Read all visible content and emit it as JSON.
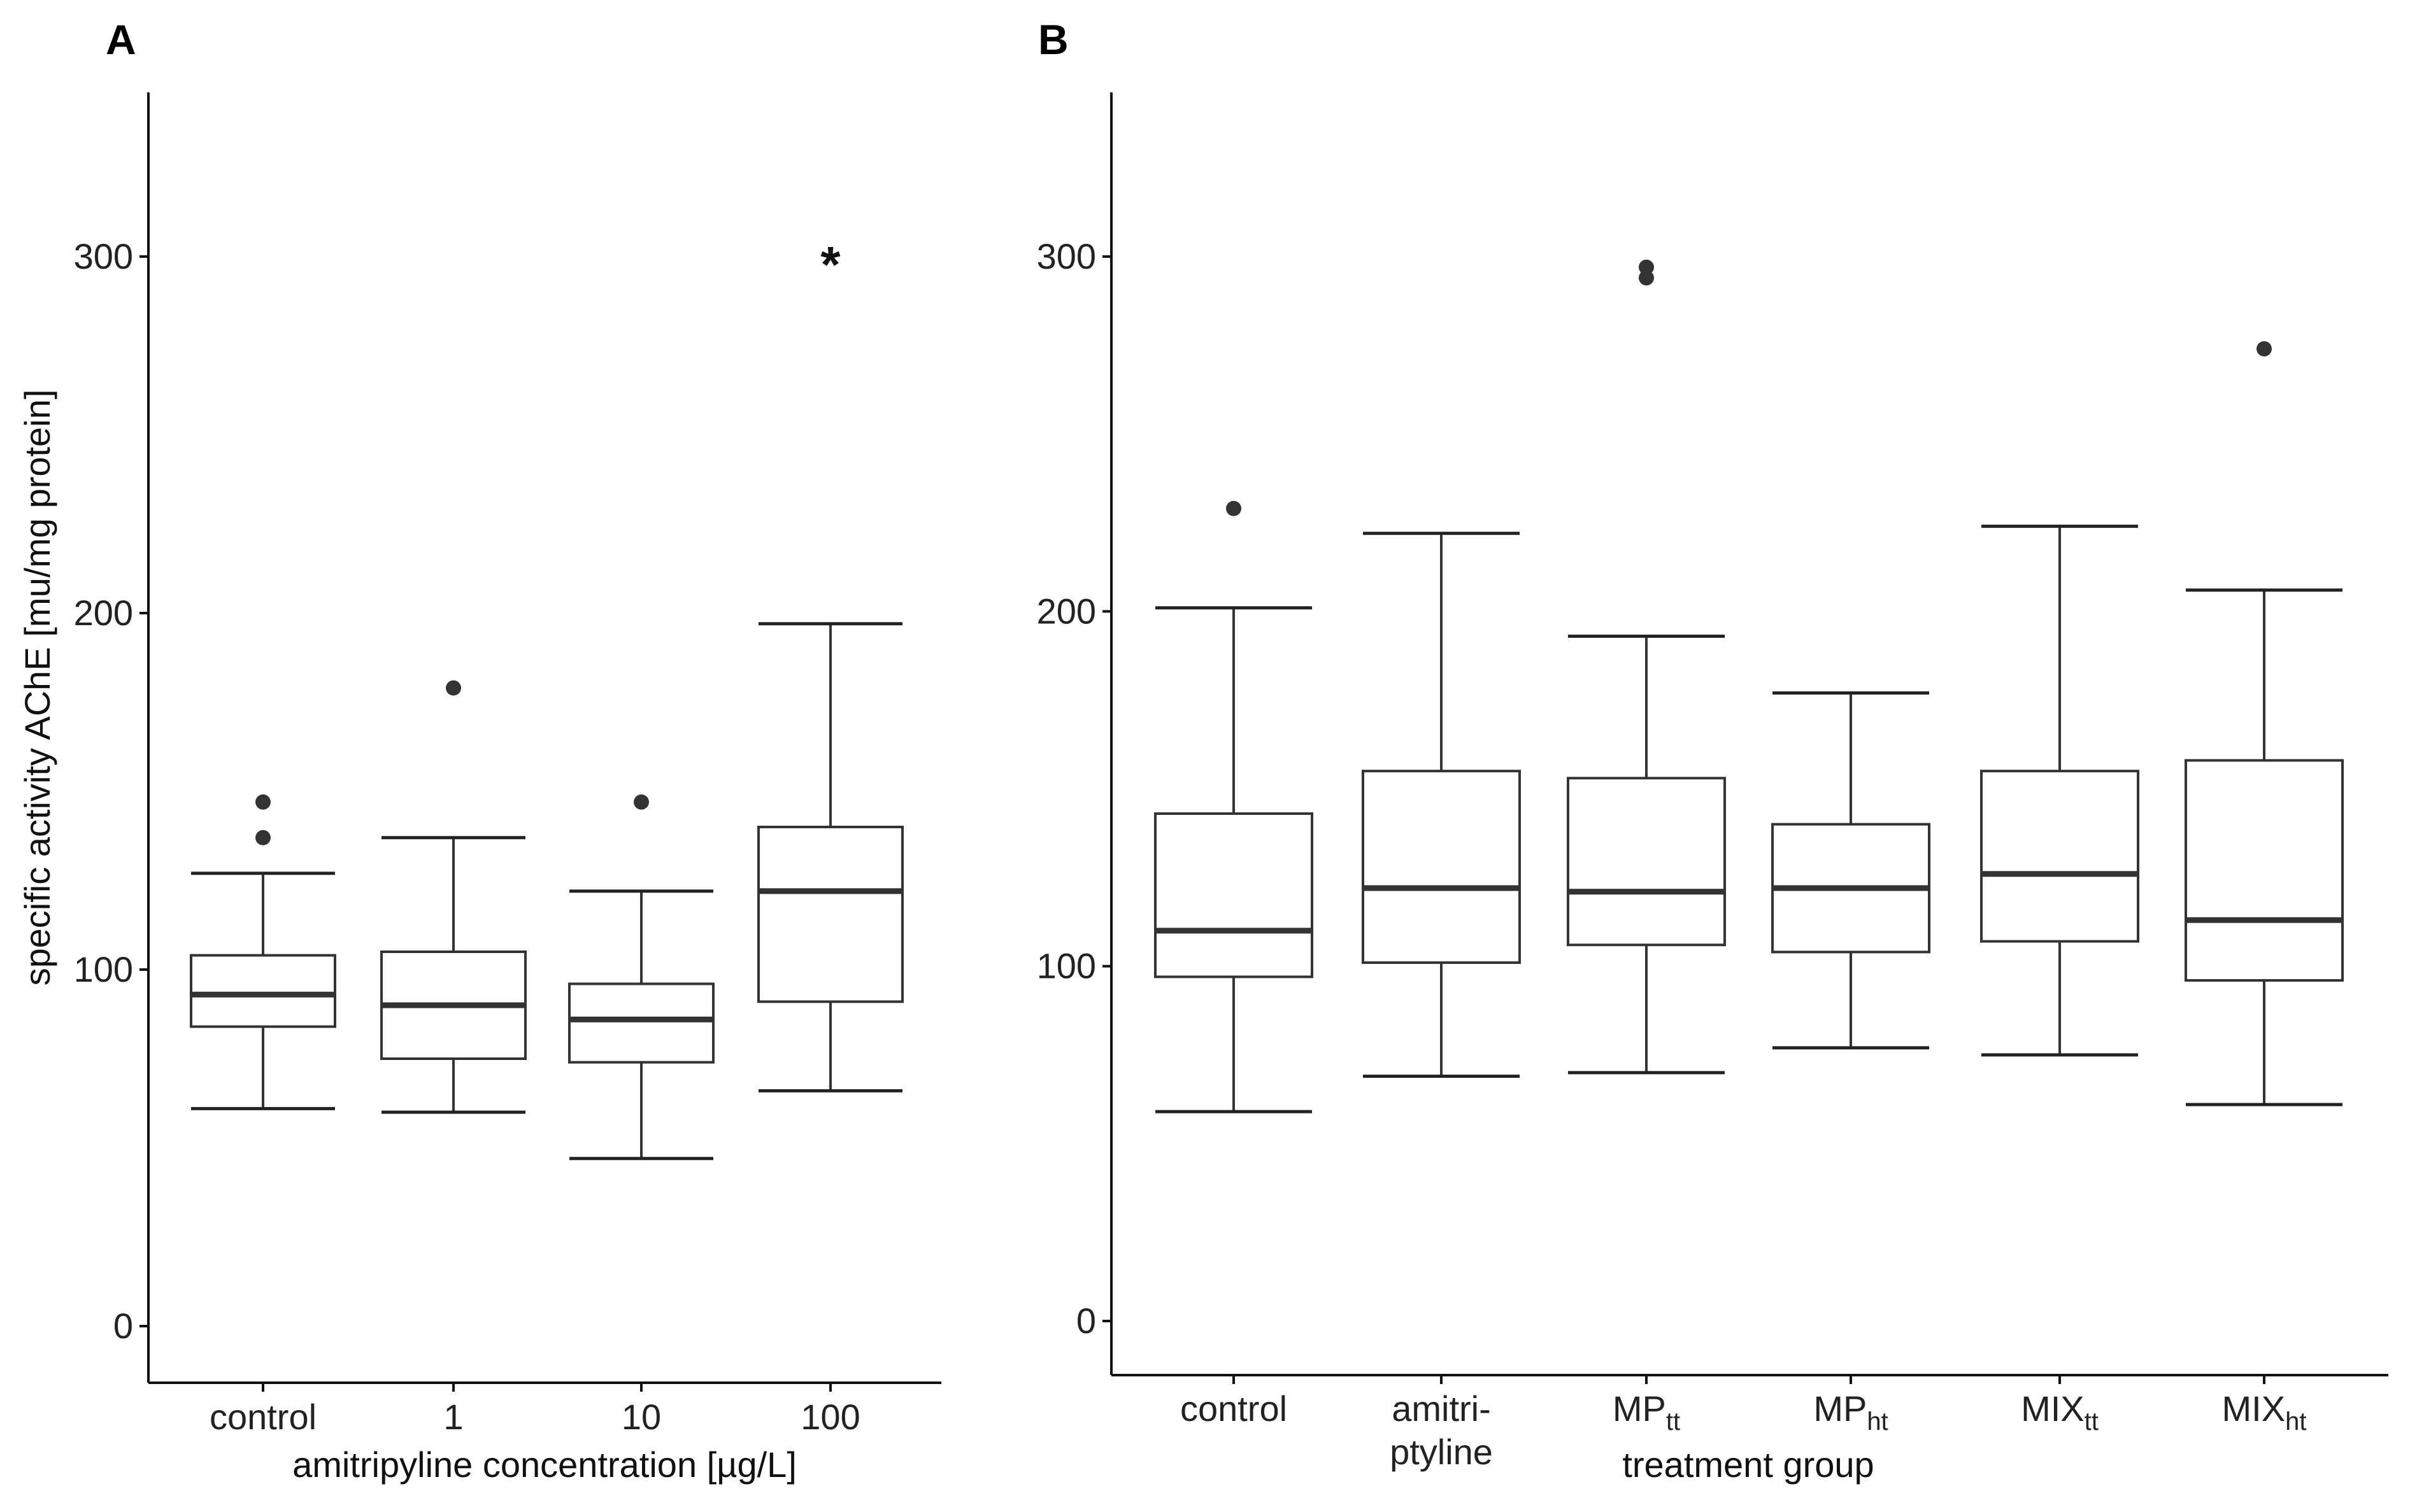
{
  "chart_data": [
    {
      "panel": "A",
      "type": "boxplot",
      "xlabel": "amitripyline concentration [µg/L]",
      "ylabel": "specific activity AChE [mu/mg protein]",
      "ylim": [
        -15,
        345
      ],
      "yticks": [
        0,
        100,
        200,
        300
      ],
      "yticklabels": [
        "0",
        "100",
        "200",
        "300"
      ],
      "categories": [
        {
          "label": "control",
          "sub": ""
        },
        {
          "label": "1",
          "sub": ""
        },
        {
          "label": "10",
          "sub": ""
        },
        {
          "label": "100",
          "sub": ""
        }
      ],
      "boxes": [
        {
          "whisker_low": 61,
          "q1": 84,
          "median": 93,
          "q3": 104,
          "whisker_high": 127,
          "outliers": [
            137,
            147
          ],
          "annotation": ""
        },
        {
          "whisker_low": 60,
          "q1": 75,
          "median": 90,
          "q3": 105,
          "whisker_high": 137,
          "outliers": [
            179
          ],
          "annotation": ""
        },
        {
          "whisker_low": 47,
          "q1": 74,
          "median": 86,
          "q3": 96,
          "whisker_high": 122,
          "outliers": [
            147
          ],
          "annotation": ""
        },
        {
          "whisker_low": 66,
          "q1": 91,
          "median": 122,
          "q3": 140,
          "whisker_high": 197,
          "outliers": [],
          "annotation": "*"
        }
      ]
    },
    {
      "panel": "B",
      "type": "boxplot",
      "xlabel": "treatment group",
      "ylabel": "",
      "ylim": [
        -15,
        345
      ],
      "yticks": [
        0,
        100,
        200,
        300
      ],
      "yticklabels": [
        "0",
        "100",
        "200",
        "300"
      ],
      "categories": [
        {
          "label": "control",
          "sub": ""
        },
        {
          "label": "amitri-",
          "label2": "ptyline",
          "sub": ""
        },
        {
          "label": "MP",
          "sub": "tt"
        },
        {
          "label": "MP",
          "sub": "ht"
        },
        {
          "label": "MIX",
          "sub": "tt"
        },
        {
          "label": "MIX",
          "sub": "ht"
        }
      ],
      "boxes": [
        {
          "whisker_low": 59,
          "q1": 97,
          "median": 110,
          "q3": 143,
          "whisker_high": 201,
          "outliers": [
            229
          ],
          "annotation": ""
        },
        {
          "whisker_low": 69,
          "q1": 101,
          "median": 122,
          "q3": 155,
          "whisker_high": 222,
          "outliers": [],
          "annotation": ""
        },
        {
          "whisker_low": 70,
          "q1": 106,
          "median": 121,
          "q3": 153,
          "whisker_high": 193,
          "outliers": [
            294,
            297
          ],
          "annotation": ""
        },
        {
          "whisker_low": 77,
          "q1": 104,
          "median": 122,
          "q3": 140,
          "whisker_high": 177,
          "outliers": [],
          "annotation": ""
        },
        {
          "whisker_low": 75,
          "q1": 107,
          "median": 126,
          "q3": 155,
          "whisker_high": 224,
          "outliers": [],
          "annotation": ""
        },
        {
          "whisker_low": 61,
          "q1": 96,
          "median": 113,
          "q3": 158,
          "whisker_high": 206,
          "outliers": [
            274
          ],
          "annotation": ""
        }
      ]
    }
  ]
}
